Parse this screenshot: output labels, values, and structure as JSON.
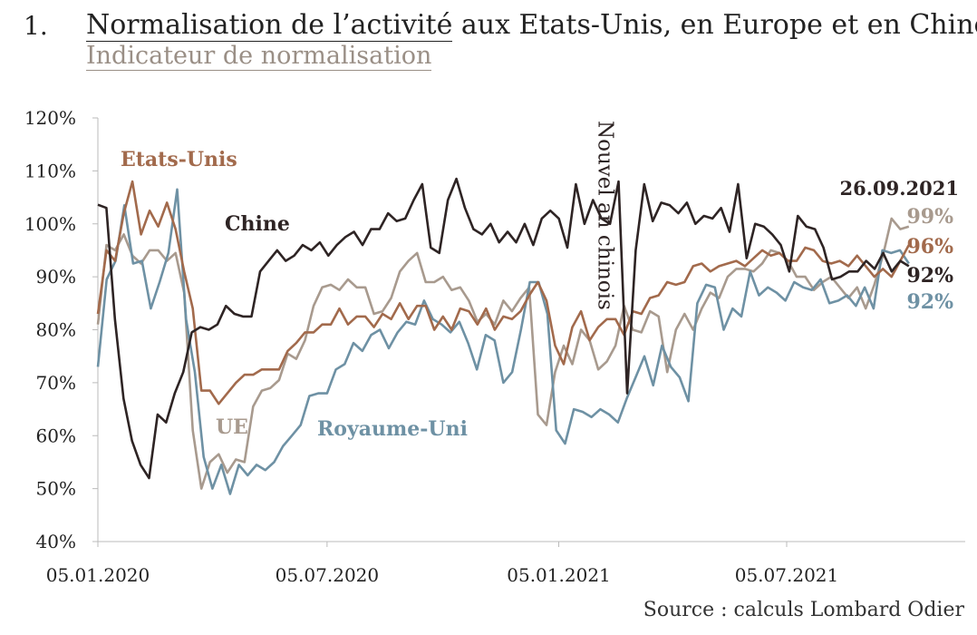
{
  "figure_number": "1.",
  "title_underlined": "Normalisation de l’activité",
  "title_rest": " aux Etats-Unis, en Europe et en Chine",
  "subtitle": "Indicateur de normalisation",
  "source": "Source : calculs Lombard Odier",
  "chart_data": {
    "type": "line",
    "ylim": [
      40,
      120
    ],
    "yticks": [
      40,
      50,
      60,
      70,
      80,
      90,
      100,
      110,
      120
    ],
    "ytick_labels": [
      "40%",
      "50%",
      "60%",
      "70%",
      "80%",
      "90%",
      "100%",
      "110%",
      "120%"
    ],
    "xticks": [
      "2020-01-05",
      "2020-07-05",
      "2021-01-05",
      "2021-07-05"
    ],
    "xtick_labels": [
      "05.01.2020",
      "05.07.2020",
      "05.01.2021",
      "05.07.2021"
    ],
    "x_start": "2020-01-05",
    "x_end": "2021-10-10",
    "annotations": [
      {
        "text": "Nouvel an chinois",
        "x": "2021-02-12",
        "kind": "vertical-band"
      },
      {
        "text": "26.09.2021",
        "x": "2021-09-26",
        "kind": "date-label"
      }
    ],
    "series": [
      {
        "name": "Chine",
        "color": "#2e2424",
        "end_label": "92%",
        "values": [
          103.6,
          103,
          82,
          67,
          59,
          54.5,
          52,
          64,
          62.5,
          68,
          72,
          79.5,
          80.5,
          80,
          81,
          84.5,
          83,
          82.5,
          82.5,
          91,
          93,
          95,
          93,
          94,
          96,
          95,
          96.5,
          94,
          96,
          97.5,
          98.5,
          96,
          99,
          99,
          102,
          100.5,
          101,
          104.5,
          107.5,
          95.5,
          94.5,
          104.5,
          108.5,
          103,
          99,
          98,
          100,
          96.5,
          98.5,
          96.5,
          100,
          96,
          101,
          102.5,
          101,
          95.5,
          107.5,
          100,
          104.5,
          101,
          100,
          108,
          68,
          95,
          107.5,
          100.5,
          104,
          103.5,
          102,
          104,
          100,
          101.5,
          101,
          103,
          98.5,
          107.5,
          93.5,
          100,
          99.5,
          98,
          96,
          91,
          101.5,
          99.5,
          99,
          95.5,
          89.5,
          90,
          91,
          91,
          93,
          91.5,
          94.5,
          91,
          93,
          92
        ]
      },
      {
        "name": "Etats-Unis",
        "color": "#a26a4c",
        "end_label": "96%",
        "values": [
          83,
          95,
          93,
          102,
          108,
          98,
          102.5,
          99.5,
          104,
          99,
          91,
          84,
          68.5,
          68.5,
          66,
          68,
          70,
          71.5,
          71.5,
          72.5,
          72.5,
          72.5,
          76,
          77.5,
          79.5,
          79.5,
          81,
          81,
          84,
          81,
          82.5,
          82.5,
          80.5,
          83,
          82,
          85,
          82,
          84.5,
          84.5,
          80,
          82.5,
          80,
          84,
          83.5,
          81,
          84,
          80,
          82.5,
          82,
          83.5,
          86.5,
          89,
          85.5,
          77,
          73.5,
          80.5,
          83.5,
          78,
          80.5,
          82,
          82,
          79,
          83.5,
          83,
          86,
          86.5,
          89,
          88.5,
          89,
          92,
          92.5,
          91,
          92,
          92.5,
          93,
          92,
          93.5,
          95,
          94,
          94.5,
          93,
          93,
          95.5,
          95,
          93,
          92.5,
          93,
          92,
          94,
          92,
          90,
          91.5,
          90,
          93,
          96
        ]
      },
      {
        "name": "UE",
        "color": "#a89a8e",
        "end_label": "99%",
        "values": [
          81,
          96,
          95,
          98,
          94,
          92.5,
          95,
          95,
          93,
          94.5,
          87,
          61,
          50,
          55,
          56.5,
          53,
          55.5,
          55,
          65.5,
          68.5,
          69,
          70.5,
          75.5,
          74.5,
          78,
          84.5,
          88,
          88.5,
          87.5,
          89.5,
          88,
          88,
          83,
          83.5,
          86,
          91,
          93,
          94.5,
          89,
          89,
          90,
          87.5,
          88,
          85.5,
          81.5,
          83,
          81,
          85.5,
          83.5,
          86,
          88,
          64,
          62,
          72,
          77,
          73.5,
          80,
          78,
          72.5,
          74,
          77,
          84.5,
          80,
          79.5,
          83.5,
          82.5,
          72,
          80,
          83,
          80,
          84,
          87,
          86,
          90,
          91.5,
          91.5,
          91,
          92.5,
          95,
          94.5,
          93,
          90,
          90,
          87.5,
          89,
          90,
          88,
          86,
          88,
          84,
          88.5,
          94,
          101,
          99,
          99.5
        ]
      },
      {
        "name": "Royaume-Uni",
        "color": "#6e91a4",
        "end_label": "92%",
        "values": [
          73,
          89.5,
          93,
          103.5,
          92.5,
          93,
          84,
          89,
          94.5,
          106.5,
          82,
          72,
          56,
          50,
          54.5,
          49,
          54.5,
          52.5,
          54.5,
          53.5,
          55,
          58,
          60,
          62,
          67.5,
          68,
          68,
          72.5,
          73.5,
          77.5,
          76,
          79,
          80,
          76.5,
          79.5,
          81.5,
          81,
          85.5,
          82,
          81,
          79.5,
          81.5,
          77.5,
          72.5,
          79,
          78,
          70,
          72,
          80,
          89,
          89,
          83,
          61,
          58.5,
          65,
          64.5,
          63.5,
          65,
          64,
          62.5,
          67,
          71,
          75,
          69.5,
          77,
          73,
          71,
          66.5,
          85,
          88.5,
          88,
          80,
          84,
          82.5,
          91,
          86.5,
          88,
          87,
          85.5,
          89,
          88,
          87.5,
          89.5,
          85,
          85.5,
          86.5,
          84.5,
          88,
          84,
          95,
          94.5,
          95,
          92.5
        ]
      }
    ]
  },
  "series_labels": {
    "Etats-Unis": "Etats-Unis",
    "Chine": "Chine",
    "UE": "UE",
    "Royaume-Uni": "Royaume-Uni"
  }
}
